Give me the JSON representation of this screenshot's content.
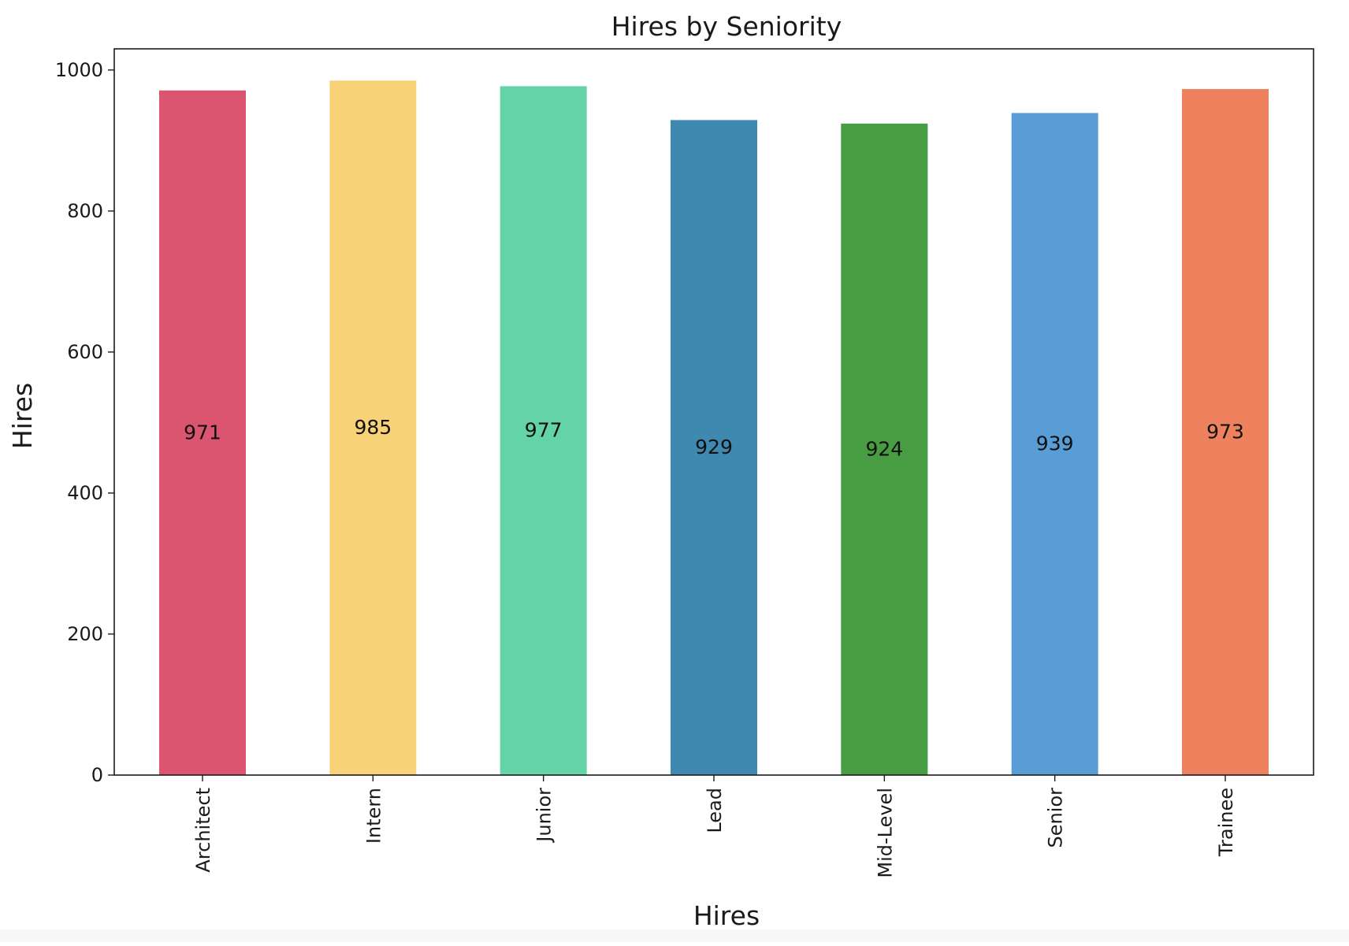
{
  "chart_data": {
    "type": "bar",
    "title": "Hires by Seniority",
    "xlabel": "Hires",
    "ylabel": "Hires",
    "categories": [
      "Architect",
      "Intern",
      "Junior",
      "Lead",
      "Mid-Level",
      "Senior",
      "Trainee"
    ],
    "values": [
      971,
      985,
      977,
      929,
      924,
      939,
      973
    ],
    "data_labels": [
      "971",
      "985",
      "977",
      "929",
      "924",
      "939",
      "973"
    ],
    "colors": [
      "#dc5570",
      "#f8d277",
      "#64d3a5",
      "#3f88b0",
      "#489c41",
      "#589dd6",
      "#ee825e"
    ],
    "ylim": [
      0,
      1030
    ],
    "yticks": [
      0,
      200,
      400,
      600,
      800,
      1000
    ],
    "ytick_labels": [
      "0",
      "200",
      "400",
      "600",
      "800",
      "1000"
    ],
    "grid": false,
    "legend": "none"
  }
}
